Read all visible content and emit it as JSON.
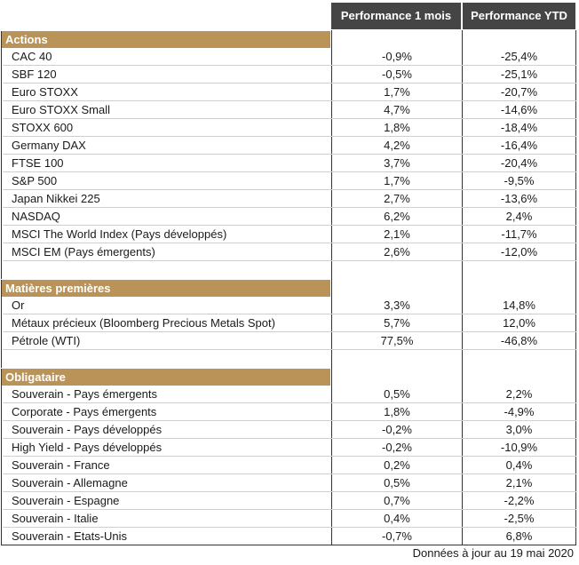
{
  "header": {
    "col_month": "Performance 1 mois",
    "col_ytd": "Performance YTD"
  },
  "sections": [
    {
      "title": "Actions",
      "rows": [
        {
          "name": "CAC 40",
          "month": "-0,9%",
          "ytd": "-25,4%"
        },
        {
          "name": "SBF 120",
          "month": "-0,5%",
          "ytd": "-25,1%"
        },
        {
          "name": "Euro STOXX",
          "month": "1,7%",
          "ytd": "-20,7%"
        },
        {
          "name": "Euro STOXX Small",
          "month": "4,7%",
          "ytd": "-14,6%"
        },
        {
          "name": "STOXX 600",
          "month": "1,8%",
          "ytd": "-18,4%"
        },
        {
          "name": "Germany DAX",
          "month": "4,2%",
          "ytd": "-16,4%"
        },
        {
          "name": "FTSE 100",
          "month": "3,7%",
          "ytd": "-20,4%"
        },
        {
          "name": "S&P 500",
          "month": "1,7%",
          "ytd": "-9,5%"
        },
        {
          "name": "Japan Nikkei 225",
          "month": "2,7%",
          "ytd": "-13,6%"
        },
        {
          "name": "NASDAQ",
          "month": "6,2%",
          "ytd": "2,4%"
        },
        {
          "name": "MSCI The World Index (Pays développés)",
          "month": "2,1%",
          "ytd": "-11,7%"
        },
        {
          "name": "MSCI EM (Pays émergents)",
          "month": "2,6%",
          "ytd": "-12,0%"
        }
      ]
    },
    {
      "title": "Matières premières",
      "rows": [
        {
          "name": "Or",
          "month": "3,3%",
          "ytd": "14,8%"
        },
        {
          "name": "Métaux précieux (Bloomberg Precious Metals Spot)",
          "month": "5,7%",
          "ytd": "12,0%"
        },
        {
          "name": "Pétrole (WTI)",
          "month": "77,5%",
          "ytd": "-46,8%"
        }
      ]
    },
    {
      "title": "Obligataire",
      "rows": [
        {
          "name": "Souverain - Pays émergents",
          "month": "0,5%",
          "ytd": "2,2%"
        },
        {
          "name": "Corporate - Pays émergents",
          "month": "1,8%",
          "ytd": "-4,9%"
        },
        {
          "name": "Souverain - Pays développés",
          "month": "-0,2%",
          "ytd": "3,0%"
        },
        {
          "name": "High Yield - Pays développés",
          "month": "-0,2%",
          "ytd": "-10,9%"
        },
        {
          "name": "Souverain - France",
          "month": "0,2%",
          "ytd": "0,4%"
        },
        {
          "name": "Souverain - Allemagne",
          "month": "0,5%",
          "ytd": "2,1%"
        },
        {
          "name": "Souverain - Espagne",
          "month": "0,7%",
          "ytd": "-2,2%"
        },
        {
          "name": "Souverain - Italie",
          "month": "0,4%",
          "ytd": "-2,5%"
        },
        {
          "name": "Souverain - Etats-Unis",
          "month": "-0,7%",
          "ytd": "6,8%"
        }
      ]
    }
  ],
  "footer": "Données à jour au 19 mai 2020",
  "colors": {
    "header_bg": "#454545",
    "section_bg": "#b99357"
  }
}
